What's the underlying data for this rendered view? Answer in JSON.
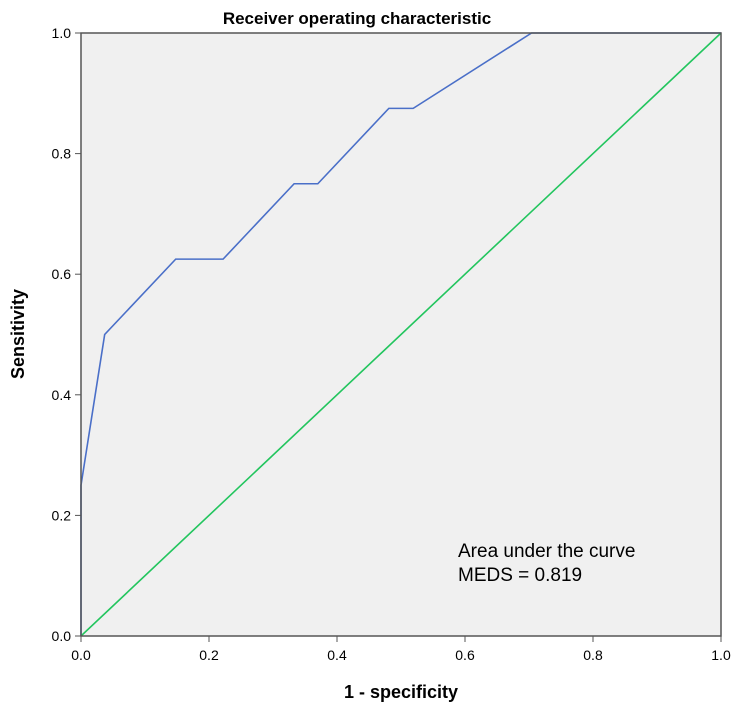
{
  "chart_data": {
    "type": "line",
    "title": "Receiver operating characteristic",
    "xlabel": "1 - specificity",
    "ylabel": "Sensitivity",
    "xlim": [
      0.0,
      1.0
    ],
    "ylim": [
      0.0,
      1.0
    ],
    "x_ticks": [
      "0.0",
      "0.2",
      "0.4",
      "0.6",
      "0.8",
      "1.0"
    ],
    "y_ticks": [
      "0.0",
      "0.2",
      "0.4",
      "0.6",
      "0.8",
      "1.0"
    ],
    "grid": false,
    "plot_background": "#f0f0f0",
    "series": [
      {
        "color": "#4a6fc8",
        "points": [
          [
            0.0,
            0.0
          ],
          [
            0.0,
            0.25
          ],
          [
            0.037,
            0.5
          ],
          [
            0.148,
            0.625
          ],
          [
            0.222,
            0.625
          ],
          [
            0.333,
            0.75
          ],
          [
            0.37,
            0.75
          ],
          [
            0.481,
            0.875
          ],
          [
            0.519,
            0.875
          ],
          [
            0.704,
            1.0
          ],
          [
            1.0,
            1.0
          ]
        ]
      },
      {
        "color": "#22c55e",
        "points": [
          [
            0.0,
            0.0
          ],
          [
            1.0,
            1.0
          ]
        ]
      }
    ],
    "annotation": {
      "lines": [
        "Area under the curve",
        "MEDS = 0.819"
      ]
    }
  }
}
